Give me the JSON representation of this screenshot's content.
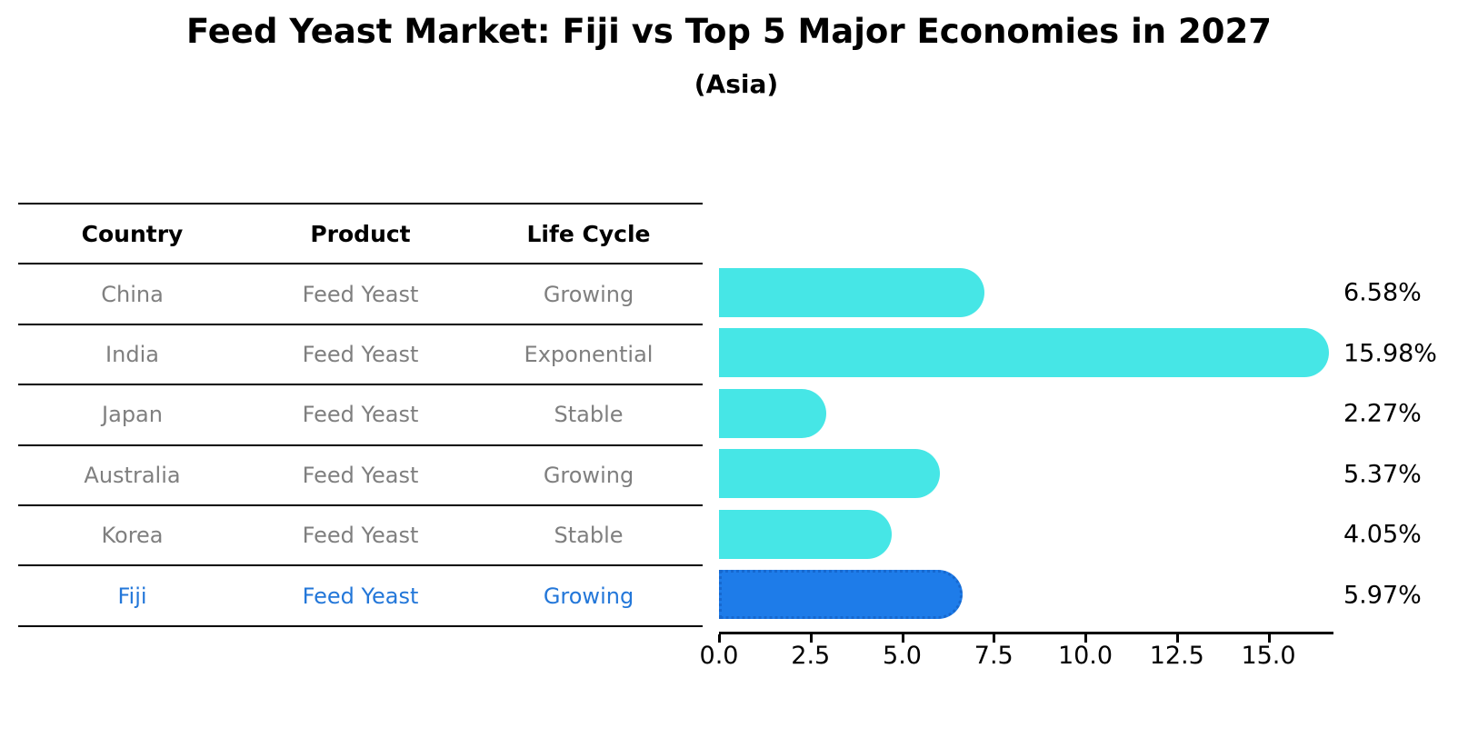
{
  "header": {
    "title": "Feed Yeast Market: Fiji vs Top 5 Major Economies in 2027",
    "subtitle": "(Asia)"
  },
  "table": {
    "columns": [
      "Country",
      "Product",
      "Life Cycle"
    ],
    "rows": [
      {
        "country": "China",
        "product": "Feed Yeast",
        "life_cycle": "Growing",
        "highlight": false
      },
      {
        "country": "India",
        "product": "Feed Yeast",
        "life_cycle": "Exponential",
        "highlight": false
      },
      {
        "country": "Japan",
        "product": "Feed Yeast",
        "life_cycle": "Stable",
        "highlight": false
      },
      {
        "country": "Australia",
        "product": "Feed Yeast",
        "life_cycle": "Growing",
        "highlight": false
      },
      {
        "country": "Korea",
        "product": "Feed Yeast",
        "life_cycle": "Stable",
        "highlight": false
      },
      {
        "country": "Fiji",
        "product": "Feed Yeast",
        "life_cycle": "Growing",
        "highlight": true
      }
    ]
  },
  "chart_data": {
    "type": "bar",
    "orientation": "horizontal",
    "title": "Feed Yeast Market: Fiji vs Top 5 Major Economies in 2027",
    "subtitle": "(Asia)",
    "categories": [
      "China",
      "India",
      "Japan",
      "Australia",
      "Korea",
      "Fiji"
    ],
    "values": [
      6.58,
      15.98,
      2.27,
      5.37,
      4.05,
      5.97
    ],
    "value_labels": [
      "6.58%",
      "15.98%",
      "2.27%",
      "5.37%",
      "4.05%",
      "5.97%"
    ],
    "highlight_index": 5,
    "x_ticks": [
      0.0,
      2.5,
      5.0,
      7.5,
      10.0,
      12.5,
      15.0
    ],
    "x_tick_labels": [
      "0.0",
      "2.5",
      "5.0",
      "7.5",
      "10.0",
      "12.5",
      "15.0"
    ],
    "xlim": [
      0,
      16.8
    ],
    "grid": false,
    "legend": "none",
    "colors": {
      "bar": "#46e6e6",
      "highlight_bar": "#1e7ce9",
      "highlight_border": "#1668cf",
      "highlight_text": "#2377d9",
      "table_text": "#7f7f7f",
      "axis": "#000000"
    }
  }
}
